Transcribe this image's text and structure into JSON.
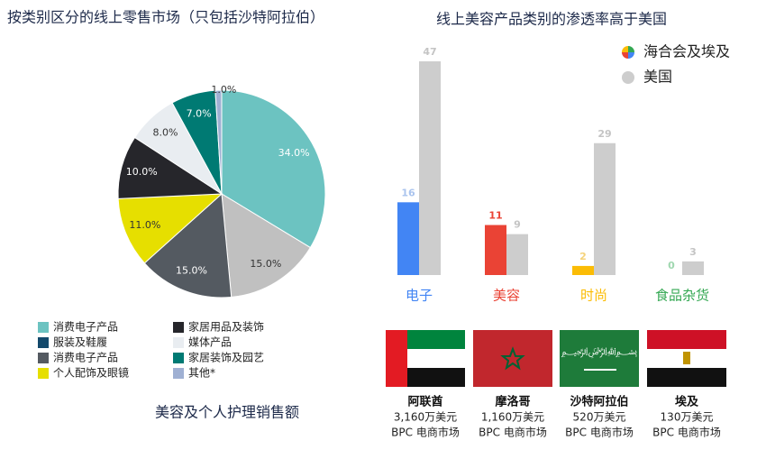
{
  "chart_data": [
    {
      "type": "pie",
      "title": "按类别区分的线上零售市场（只包括沙特阿拉伯）",
      "subtitle": "美容及个人护理销售额",
      "categories": [
        "消费电子产品",
        "服装及鞋履",
        "消费电子产品",
        "个人配饰及眼镜",
        "家居用品及装饰",
        "媒体产品",
        "家居装饰及园艺",
        "其他*"
      ],
      "values": [
        34.0,
        15.0,
        15.0,
        11.0,
        10.0,
        8.0,
        7.0,
        1.0
      ],
      "value_labels": [
        "34.0%",
        "15.0%",
        "15.0%",
        "11.0%",
        "10.0%",
        "8.0%",
        "7.0%",
        "1.0%"
      ],
      "colors": [
        "#6cc3c1",
        "#c0c0c0",
        "#545a61",
        "#e6df00",
        "#26262b",
        "#e9edf1",
        "#007a73",
        "#9fb0d3"
      ],
      "legend_colors": [
        "#6cc3c1",
        "#13496b",
        "#545a61",
        "#e6df00",
        "#26262b",
        "#e9edf1",
        "#007a73",
        "#9fb0d3"
      ]
    },
    {
      "type": "bar",
      "title": "线上美容产品类别的渗透率高于美国",
      "categories": [
        "电子",
        "美容",
        "时尚",
        "食品杂货"
      ],
      "series": [
        {
          "name": "海合会及埃及",
          "colors": [
            "#4285f4",
            "#ea4335",
            "#fbbc05",
            "#34a853"
          ],
          "label_color": [
            "#aac4ee",
            "#ea4335",
            "#f5d27a",
            "#9fd7af"
          ],
          "values": [
            16,
            11,
            2,
            0
          ]
        },
        {
          "name": "美国",
          "color": "#cdcdcd",
          "values": [
            47,
            9,
            29,
            3
          ]
        }
      ],
      "legend_position": "upper right"
    }
  ],
  "markets": [
    {
      "name": "阿联酋",
      "sales": "3,160万美元",
      "label": "BPC 电商市场"
    },
    {
      "name": "摩洛哥",
      "sales": "1,160万美元",
      "label": "BPC 电商市场"
    },
    {
      "name": "沙特阿拉伯",
      "sales": "520万美元",
      "label": "BPC 电商市场"
    },
    {
      "name": "埃及",
      "sales": "130万美元",
      "label": "BPC 电商市场"
    }
  ]
}
